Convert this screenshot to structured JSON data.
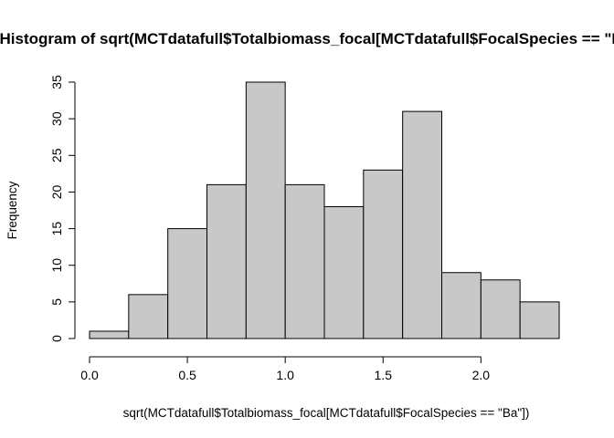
{
  "chart_data": {
    "type": "bar",
    "title": "Histogram of sqrt(MCTdatafull$Totalbiomass_focal[MCTdatafull$FocalSpecies == \"Ba\"])",
    "xlabel": "sqrt(MCTdatafull$Totalbiomass_focal[MCTdatafull$FocalSpecies == \"Ba\"])",
    "ylabel": "Frequency",
    "bins": [
      {
        "from": 0.0,
        "to": 0.2,
        "count": 1
      },
      {
        "from": 0.2,
        "to": 0.4,
        "count": 6
      },
      {
        "from": 0.4,
        "to": 0.6,
        "count": 15
      },
      {
        "from": 0.6,
        "to": 0.8,
        "count": 21
      },
      {
        "from": 0.8,
        "to": 1.0,
        "count": 35
      },
      {
        "from": 1.0,
        "to": 1.2,
        "count": 21
      },
      {
        "from": 1.2,
        "to": 1.4,
        "count": 18
      },
      {
        "from": 1.4,
        "to": 1.6,
        "count": 23
      },
      {
        "from": 1.6,
        "to": 1.8,
        "count": 31
      },
      {
        "from": 1.8,
        "to": 2.0,
        "count": 9
      },
      {
        "from": 2.0,
        "to": 2.2,
        "count": 8
      },
      {
        "from": 2.2,
        "to": 2.4,
        "count": 5
      }
    ],
    "xlim": [
      0.0,
      2.4
    ],
    "ylim": [
      0,
      35
    ],
    "x_ticks": [
      "0.0",
      "0.5",
      "1.0",
      "1.5",
      "2.0"
    ],
    "y_ticks": [
      "0",
      "5",
      "10",
      "15",
      "20",
      "25",
      "30",
      "35"
    ],
    "grid": false,
    "bar_color": "#c8c8c8"
  }
}
